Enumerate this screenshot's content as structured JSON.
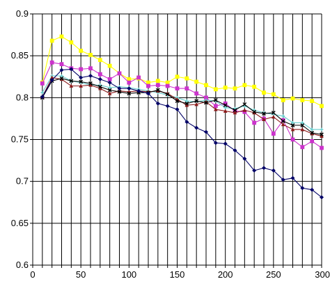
{
  "chart_data": {
    "type": "line",
    "title": "",
    "xlabel": "",
    "ylabel": "",
    "xlim": [
      0,
      300
    ],
    "ylim": [
      0.6,
      0.9
    ],
    "x_ticks": [
      0,
      50,
      100,
      150,
      200,
      250,
      300
    ],
    "x_tick_labels": [
      "0",
      "50",
      "100",
      "150",
      "200",
      "250",
      "300"
    ],
    "x_grid_step": 10,
    "y_ticks": [
      0.6,
      0.65,
      0.7,
      0.75,
      0.8,
      0.85,
      0.9
    ],
    "y_tick_labels": [
      "0.6",
      "0.65",
      "0.7",
      "0.75",
      "0.8",
      "0.85",
      "0.9"
    ],
    "grid": true,
    "legend": "none",
    "x": [
      10,
      20,
      30,
      40,
      50,
      60,
      70,
      80,
      90,
      100,
      110,
      120,
      130,
      140,
      150,
      160,
      170,
      180,
      190,
      200,
      210,
      220,
      230,
      240,
      250,
      260,
      270,
      280,
      290,
      300
    ],
    "series": [
      {
        "color": "#ffff00",
        "marker": "square",
        "values": [
          0.818,
          0.868,
          0.873,
          0.866,
          0.856,
          0.851,
          0.845,
          0.838,
          0.829,
          0.822,
          0.823,
          0.818,
          0.82,
          0.818,
          0.825,
          0.823,
          0.819,
          0.815,
          0.81,
          0.812,
          0.811,
          0.815,
          0.813,
          0.806,
          0.804,
          0.797,
          0.799,
          0.797,
          0.796,
          0.79
        ]
      },
      {
        "color": "#cc33cc",
        "marker": "square",
        "values": [
          0.817,
          0.842,
          0.84,
          0.835,
          0.834,
          0.835,
          0.828,
          0.822,
          0.829,
          0.818,
          0.824,
          0.814,
          0.815,
          0.814,
          0.811,
          0.811,
          0.805,
          0.8,
          0.79,
          0.793,
          0.784,
          0.783,
          0.77,
          0.775,
          0.757,
          0.773,
          0.75,
          0.741,
          0.748,
          0.74
        ]
      },
      {
        "color": "#66cccc",
        "marker": "cross",
        "values": [
          0.806,
          0.826,
          0.826,
          0.82,
          0.818,
          0.815,
          0.815,
          0.812,
          0.813,
          0.812,
          0.81,
          0.808,
          0.806,
          0.803,
          0.8,
          0.796,
          0.795,
          0.797,
          0.796,
          0.788,
          0.787,
          0.79,
          0.785,
          0.782,
          0.78,
          0.778,
          0.77,
          0.77,
          0.762,
          0.762
        ]
      },
      {
        "color": "#8b1a1a",
        "marker": "triangle",
        "values": [
          0.801,
          0.824,
          0.822,
          0.814,
          0.814,
          0.815,
          0.811,
          0.805,
          0.808,
          0.807,
          0.808,
          0.807,
          0.808,
          0.805,
          0.798,
          0.791,
          0.792,
          0.795,
          0.786,
          0.784,
          0.782,
          0.785,
          0.782,
          0.774,
          0.777,
          0.768,
          0.762,
          0.762,
          0.757,
          0.754
        ]
      },
      {
        "color": "#000000",
        "marker": "x",
        "values": [
          0.8,
          0.82,
          0.823,
          0.82,
          0.819,
          0.817,
          0.813,
          0.809,
          0.807,
          0.805,
          0.806,
          0.806,
          0.809,
          0.804,
          0.796,
          0.793,
          0.796,
          0.794,
          0.797,
          0.791,
          0.785,
          0.792,
          0.783,
          0.781,
          0.782,
          0.772,
          0.767,
          0.767,
          0.758,
          0.756
        ]
      },
      {
        "color": "#000066",
        "marker": "diamond",
        "values": [
          0.801,
          0.821,
          0.833,
          0.834,
          0.824,
          0.826,
          0.822,
          0.818,
          0.811,
          0.811,
          0.808,
          0.805,
          0.793,
          0.79,
          0.786,
          0.771,
          0.764,
          0.759,
          0.746,
          0.745,
          0.737,
          0.727,
          0.713,
          0.716,
          0.713,
          0.702,
          0.704,
          0.692,
          0.69,
          0.681
        ]
      }
    ]
  }
}
